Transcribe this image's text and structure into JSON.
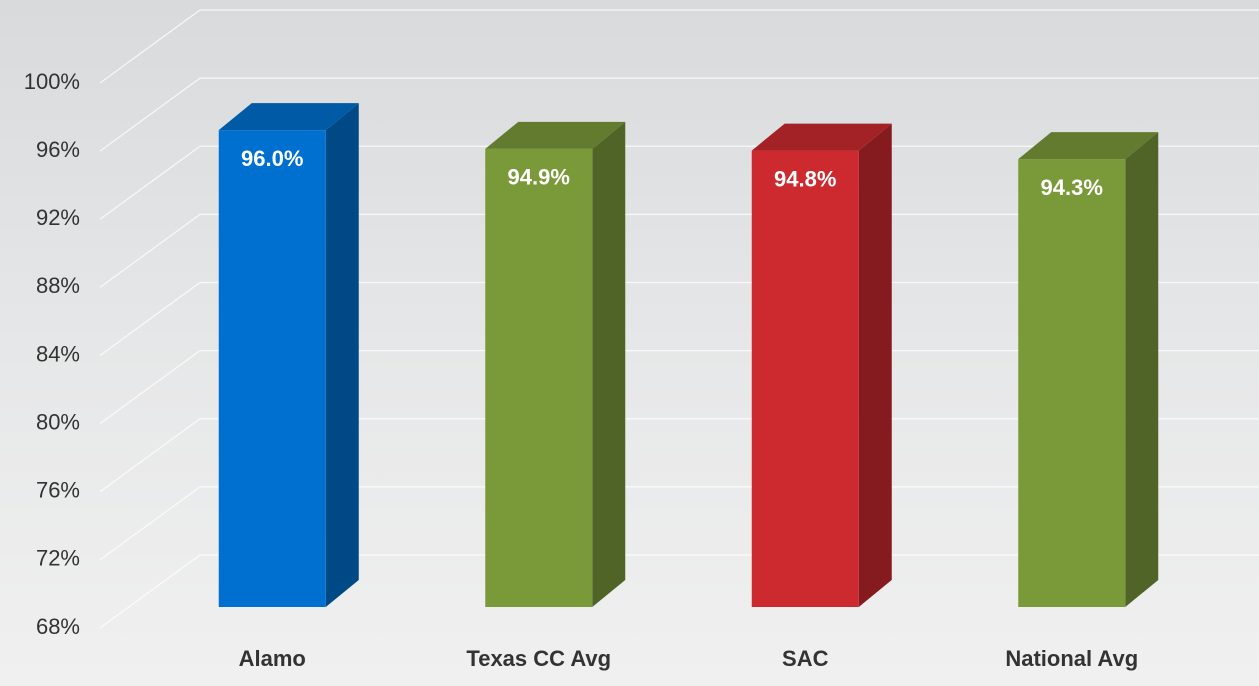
{
  "chart_data": {
    "type": "bar3d",
    "categories": [
      "Alamo",
      "Texas CC Avg",
      "SAC",
      "National Avg"
    ],
    "values": [
      96.0,
      94.9,
      94.8,
      94.3
    ],
    "value_labels": [
      "96.0%",
      "94.9%",
      "94.8%",
      "94.3%"
    ],
    "colors": [
      "#0070d0",
      "#7a9a3a",
      "#cc2a2e",
      "#7a9a3a"
    ],
    "ylim": [
      68,
      100
    ],
    "yticks": [
      {
        "value": 68,
        "label": "68%"
      },
      {
        "value": 72,
        "label": "72%"
      },
      {
        "value": 76,
        "label": "76%"
      },
      {
        "value": 80,
        "label": "80%"
      },
      {
        "value": 84,
        "label": "84%"
      },
      {
        "value": 88,
        "label": "88%"
      },
      {
        "value": 92,
        "label": "92%"
      },
      {
        "value": 96,
        "label": "96%"
      },
      {
        "value": 100,
        "label": "100%"
      }
    ],
    "grid": true
  }
}
